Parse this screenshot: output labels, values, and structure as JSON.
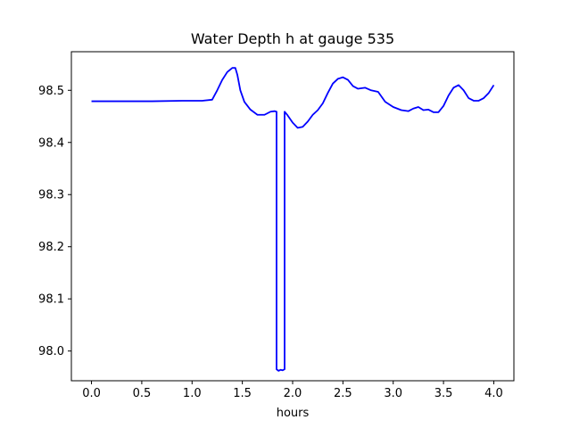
{
  "chart_data": {
    "type": "line",
    "title": "Water Depth h at gauge 535",
    "xlabel": "hours",
    "ylabel": "",
    "xlim": [
      -0.2,
      4.2
    ],
    "ylim": [
      97.943,
      98.574
    ],
    "xticks": [
      0.0,
      0.5,
      1.0,
      1.5,
      2.0,
      2.5,
      3.0,
      3.5,
      4.0
    ],
    "xtick_labels": [
      "0.0",
      "0.5",
      "1.0",
      "1.5",
      "2.0",
      "2.5",
      "3.0",
      "3.5",
      "4.0"
    ],
    "yticks": [
      98.0,
      98.1,
      98.2,
      98.3,
      98.4,
      98.5
    ],
    "ytick_labels": [
      "98.0",
      "98.1",
      "98.2",
      "98.3",
      "98.4",
      "98.5"
    ],
    "grid": false,
    "series": [
      {
        "color": "#0000ff",
        "x": [
          0.0,
          0.3,
          0.6,
          0.9,
          1.1,
          1.2,
          1.25,
          1.3,
          1.35,
          1.4,
          1.43,
          1.45,
          1.48,
          1.52,
          1.58,
          1.65,
          1.72,
          1.78,
          1.82,
          1.84,
          1.84,
          1.86,
          1.88,
          1.9,
          1.92,
          1.92,
          1.95,
          2.0,
          2.05,
          2.1,
          2.15,
          2.2,
          2.25,
          2.3,
          2.35,
          2.4,
          2.45,
          2.5,
          2.55,
          2.6,
          2.65,
          2.72,
          2.78,
          2.85,
          2.92,
          3.0,
          3.08,
          3.15,
          3.2,
          3.25,
          3.3,
          3.35,
          3.4,
          3.45,
          3.5,
          3.55,
          3.6,
          3.65,
          3.7,
          3.75,
          3.8,
          3.85,
          3.9,
          3.95,
          4.0
        ],
        "y": [
          98.479,
          98.479,
          98.479,
          98.48,
          98.48,
          98.482,
          98.5,
          98.52,
          98.535,
          98.543,
          98.543,
          98.53,
          98.5,
          98.478,
          98.463,
          98.453,
          98.453,
          98.459,
          98.46,
          98.459,
          97.965,
          97.962,
          97.964,
          97.963,
          97.965,
          98.459,
          98.452,
          98.438,
          98.428,
          98.43,
          98.44,
          98.453,
          98.462,
          98.475,
          98.495,
          98.513,
          98.522,
          98.525,
          98.52,
          98.508,
          98.503,
          98.505,
          98.5,
          98.497,
          98.478,
          98.468,
          98.462,
          98.46,
          98.465,
          98.468,
          98.462,
          98.463,
          98.458,
          98.458,
          98.47,
          98.49,
          98.505,
          98.51,
          98.5,
          98.485,
          98.48,
          98.48,
          98.485,
          98.495,
          98.51
        ]
      }
    ]
  }
}
